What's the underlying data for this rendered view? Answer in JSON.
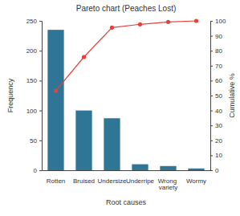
{
  "chart_data": {
    "type": "bar",
    "title": "Pareto chart (Peaches Lost)",
    "x_label": "Root causes",
    "y_label": "Frequency",
    "y2_label": "Cumulative %",
    "categories": [
      "Rotten",
      "Bruised",
      "Undersize",
      "Underripe",
      "Wrong variety",
      "Wormy"
    ],
    "series": [
      {
        "type": "bar",
        "color": "#2e7596",
        "values": [
          235,
          100,
          87,
          10,
          7,
          3
        ]
      },
      {
        "type": "line",
        "color": "#e8403a",
        "marker": "circle",
        "line_style": "solid",
        "axis": "y2",
        "values": [
          53.2,
          75.8,
          95.5,
          97.7,
          99.3,
          100
        ]
      }
    ],
    "ylim": [
      0,
      250
    ],
    "yticks": [
      0,
      50,
      100,
      150,
      200,
      250
    ],
    "y2lim": [
      0,
      100
    ],
    "y2ticks": [
      0,
      10,
      20,
      30,
      40,
      50,
      60,
      70,
      80,
      90,
      100
    ],
    "grid": false
  }
}
